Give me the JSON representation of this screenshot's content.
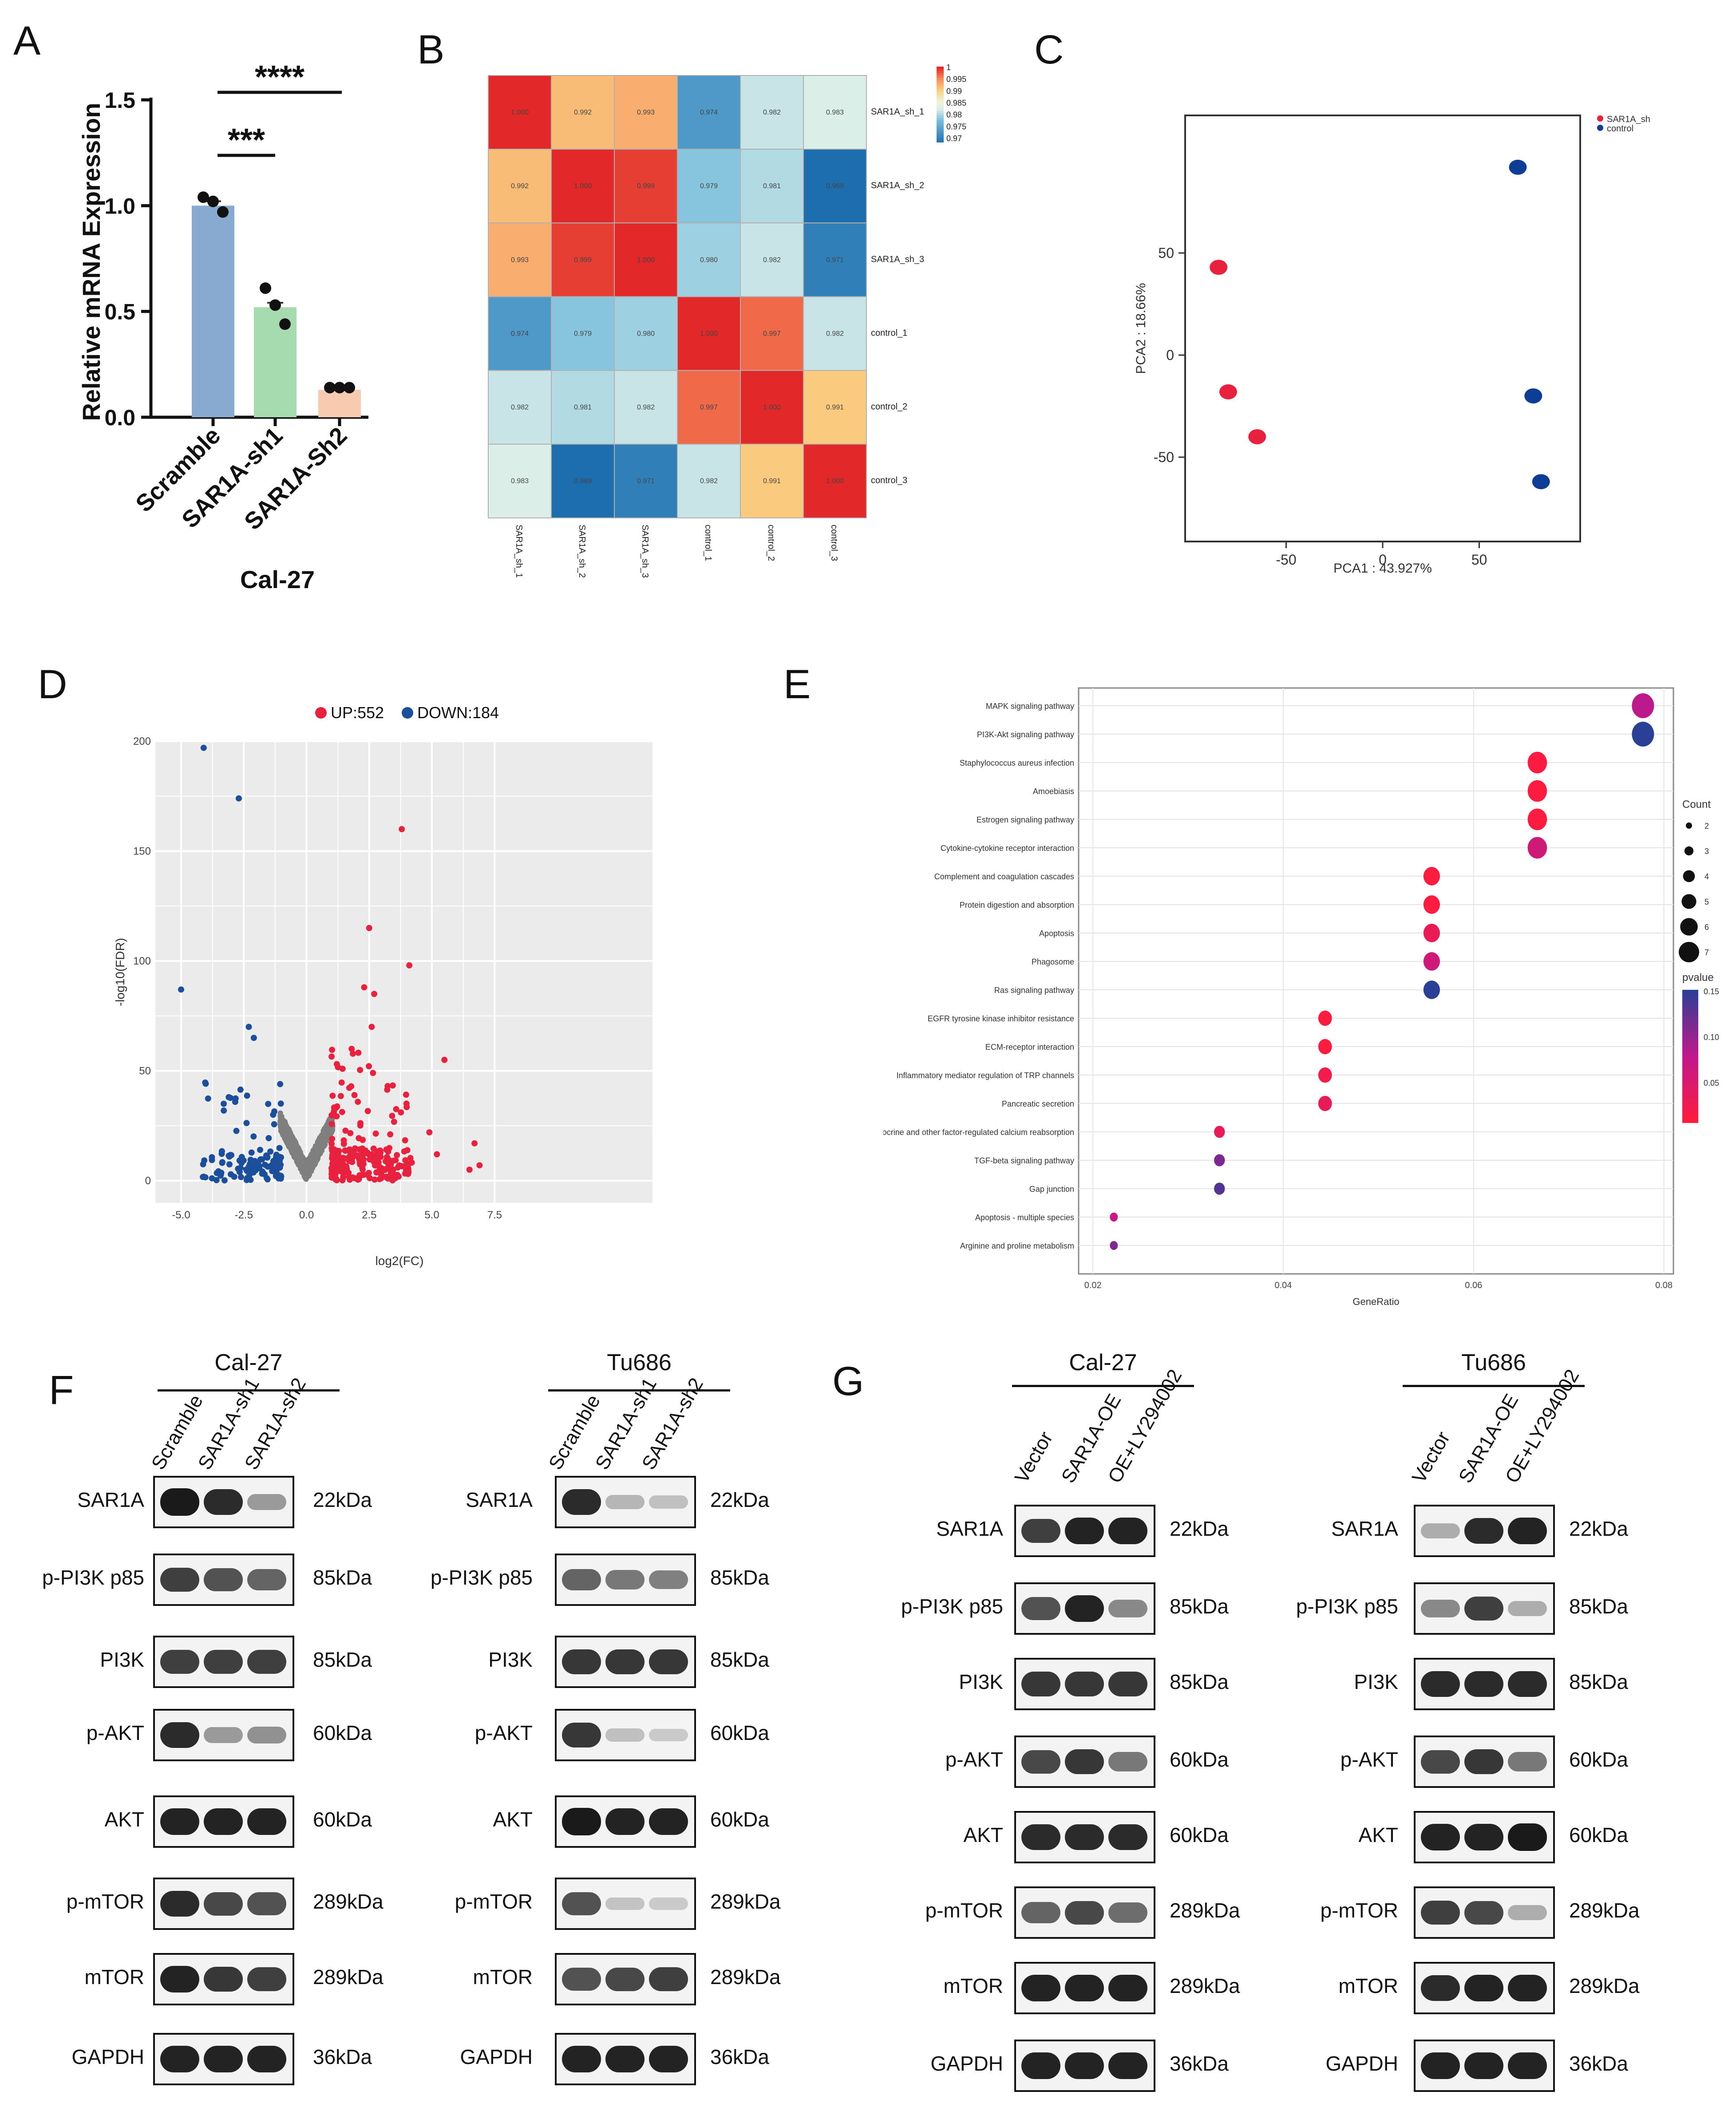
{
  "panel_labels": {
    "A": "A",
    "B": "B",
    "C": "C",
    "D": "D",
    "E": "E",
    "F": "F",
    "G": "G"
  },
  "panelA": {
    "ylabel": "Relative mRNA Expression",
    "xlabel": "Cal-27",
    "categories": [
      "Scramble",
      "SAR1A-sh1",
      "SAR1A-Sh2"
    ],
    "values": [
      1.0,
      0.52,
      0.13
    ],
    "points": [
      [
        1.04,
        1.02,
        0.97
      ],
      [
        0.61,
        0.53,
        0.44
      ],
      [
        0.14,
        0.14,
        0.14
      ]
    ],
    "colors": [
      "#88aad0",
      "#a6dbb0",
      "#f8cbb0"
    ],
    "yticks": [
      "0.0",
      "0.5",
      "1.0",
      "1.5"
    ],
    "ylim": [
      0,
      1.5
    ],
    "sig1": "***",
    "sig2": "****"
  },
  "panelB": {
    "rows": [
      "SAR1A_sh_1",
      "SAR1A_sh_2",
      "SAR1A_sh_3",
      "control_1",
      "control_2",
      "control_3"
    ],
    "matrix": [
      [
        1.0,
        0.992,
        0.993,
        0.974,
        0.982,
        0.983
      ],
      [
        0.992,
        1.0,
        0.999,
        0.979,
        0.981,
        0.969
      ],
      [
        0.993,
        0.999,
        1.0,
        0.98,
        0.982,
        0.971
      ],
      [
        0.974,
        0.979,
        0.98,
        1.0,
        0.997,
        0.982
      ],
      [
        0.982,
        0.981,
        0.982,
        0.997,
        1.0,
        0.991
      ],
      [
        0.983,
        0.969,
        0.971,
        0.982,
        0.991,
        1.0
      ]
    ],
    "cell_labels": [
      [
        "1.000",
        "0.992",
        "0.993",
        "0.974",
        "0.982",
        "0.983"
      ],
      [
        "0.992",
        "1.000",
        "0.999",
        "0.979",
        "0.981",
        "0.969"
      ],
      [
        "0.993",
        "0.999",
        "1.000",
        "0.980",
        "0.982",
        "0.971"
      ],
      [
        "0.974",
        "0.979",
        "0.980",
        "1.000",
        "0.997",
        "0.982"
      ],
      [
        "0.982",
        "0.981",
        "0.982",
        "0.997",
        "1.000",
        "0.991"
      ],
      [
        "0.983",
        "0.969",
        "0.971",
        "0.982",
        "0.991",
        "1.000"
      ]
    ],
    "legend_ticks": [
      "1",
      "0.995",
      "0.99",
      "0.985",
      "0.98",
      "0.975",
      "0.97"
    ]
  },
  "panelC": {
    "xlabel": "PCA1 : 43.927%",
    "ylabel": "PCA2 : 18.66%",
    "xticks": [
      "-50",
      "0",
      "50"
    ],
    "yticks": [
      "50",
      "0",
      "-50"
    ],
    "legend": [
      "SAR1A_sh",
      "control"
    ],
    "colors": [
      "#e8213f",
      "#0d3d95"
    ],
    "sh_points": [
      [
        -85,
        43
      ],
      [
        -80,
        -18
      ],
      [
        -65,
        -40
      ]
    ],
    "control_points": [
      [
        70,
        92
      ],
      [
        78,
        -20
      ],
      [
        82,
        -62
      ]
    ]
  },
  "panelD": {
    "legend_up": "UP:552",
    "legend_down": "DOWN:184",
    "xlabel": "log2(FC)",
    "ylabel": "-log10(FDR)",
    "xticks": [
      "-5.0",
      "-2.5",
      "0.0",
      "2.5",
      "5.0",
      "7.5"
    ],
    "yticks": [
      "0",
      "50",
      "100",
      "150",
      "200"
    ]
  },
  "panelE": {
    "xlabel": "GeneRatio",
    "xticks": [
      "0.02",
      "0.04",
      "0.06",
      "0.08"
    ],
    "pathways": [
      {
        "name": "MAPK signaling pathway",
        "ratio": 0.0778,
        "count": 7,
        "p": 0.08
      },
      {
        "name": "PI3K-Akt signaling pathway",
        "ratio": 0.0778,
        "count": 7,
        "p": 0.15
      },
      {
        "name": "Staphylococcus aureus infection",
        "ratio": 0.0667,
        "count": 6,
        "p": 0.01
      },
      {
        "name": "Amoebiasis",
        "ratio": 0.0667,
        "count": 6,
        "p": 0.01
      },
      {
        "name": "Estrogen signaling pathway",
        "ratio": 0.0667,
        "count": 6,
        "p": 0.01
      },
      {
        "name": "Cytokine-cytokine receptor interaction",
        "ratio": 0.0667,
        "count": 6,
        "p": 0.06
      },
      {
        "name": "Complement and coagulation cascades",
        "ratio": 0.0556,
        "count": 5,
        "p": 0.01
      },
      {
        "name": "Protein digestion and absorption",
        "ratio": 0.0556,
        "count": 5,
        "p": 0.01
      },
      {
        "name": "Apoptosis",
        "ratio": 0.0556,
        "count": 5,
        "p": 0.03
      },
      {
        "name": "Phagosome",
        "ratio": 0.0556,
        "count": 5,
        "p": 0.06
      },
      {
        "name": "Ras signaling pathway",
        "ratio": 0.0556,
        "count": 5,
        "p": 0.15
      },
      {
        "name": "EGFR tyrosine kinase inhibitor resistance",
        "ratio": 0.0444,
        "count": 4,
        "p": 0.01
      },
      {
        "name": "ECM-receptor interaction",
        "ratio": 0.0444,
        "count": 4,
        "p": 0.01
      },
      {
        "name": "Inflammatory mediator regulation of TRP channels",
        "ratio": 0.0444,
        "count": 4,
        "p": 0.02
      },
      {
        "name": "Pancreatic secretion",
        "ratio": 0.0444,
        "count": 4,
        "p": 0.03
      },
      {
        "name": "Endocrine and other factor-regulated calcium reabsorption",
        "ratio": 0.0333,
        "count": 3,
        "p": 0.03
      },
      {
        "name": "TGF-beta signaling pathway",
        "ratio": 0.0333,
        "count": 3,
        "p": 0.11
      },
      {
        "name": "Gap junction",
        "ratio": 0.0333,
        "count": 3,
        "p": 0.13
      },
      {
        "name": "Apoptosis - multiple species",
        "ratio": 0.0222,
        "count": 2,
        "p": 0.07
      },
      {
        "name": "Arginine and proline metabolism",
        "ratio": 0.0222,
        "count": 2,
        "p": 0.11
      }
    ],
    "count_title": "Count",
    "count_ticks": [
      "2",
      "3",
      "4",
      "5",
      "6",
      "7"
    ],
    "pvalue_title": "pvalue",
    "pvalue_ticks": [
      "0.15",
      "0.10",
      "0.05"
    ]
  },
  "panelF": {
    "groups": [
      {
        "title": "Cal-27",
        "lanes": [
          "Scramble",
          "SAR1A-sh1",
          "SAR1A-sh2"
        ]
      },
      {
        "title": "Tu686",
        "lanes": [
          "Scramble",
          "SAR1A-sh1",
          "SAR1A-sh2"
        ]
      }
    ]
  },
  "panelG": {
    "groups": [
      {
        "title": "Cal-27",
        "lanes": [
          "Vector",
          "SAR1A-OE",
          "OE+LY294002"
        ]
      },
      {
        "title": "Tu686",
        "lanes": [
          "Vector",
          "SAR1A-OE",
          "OE+LY294002"
        ]
      }
    ]
  },
  "blot_rows": [
    {
      "protein": "SAR1A",
      "size": "22kDa"
    },
    {
      "protein": "p-PI3K p85",
      "size": "85kDa"
    },
    {
      "protein": "PI3K",
      "size": "85kDa"
    },
    {
      "protein": "p-AKT",
      "size": "60kDa"
    },
    {
      "protein": "AKT",
      "size": "60kDa"
    },
    {
      "protein": "p-mTOR",
      "size": "289kDa"
    },
    {
      "protein": "mTOR",
      "size": "289kDa"
    },
    {
      "protein": "GAPDH",
      "size": "36kDa"
    }
  ],
  "band_intensity": {
    "F_cal27": [
      [
        1,
        0.9,
        0.3
      ],
      [
        0.8,
        0.7,
        0.6
      ],
      [
        0.8,
        0.8,
        0.8
      ],
      [
        0.9,
        0.3,
        0.35
      ],
      [
        0.95,
        0.95,
        0.95
      ],
      [
        0.9,
        0.75,
        0.7
      ],
      [
        0.95,
        0.85,
        0.8
      ],
      [
        0.95,
        0.95,
        0.95
      ]
    ],
    "F_tu686": [
      [
        0.9,
        0.15,
        0.1
      ],
      [
        0.6,
        0.5,
        0.45
      ],
      [
        0.85,
        0.85,
        0.85
      ],
      [
        0.85,
        0.1,
        0.05
      ],
      [
        1,
        0.95,
        0.95
      ],
      [
        0.7,
        0.08,
        0.05
      ],
      [
        0.7,
        0.75,
        0.8
      ],
      [
        0.95,
        0.95,
        0.95
      ]
    ],
    "G_cal27": [
      [
        0.8,
        0.95,
        0.95
      ],
      [
        0.7,
        0.95,
        0.4
      ],
      [
        0.85,
        0.85,
        0.85
      ],
      [
        0.75,
        0.85,
        0.5
      ],
      [
        0.9,
        0.9,
        0.9
      ],
      [
        0.6,
        0.75,
        0.55
      ],
      [
        0.95,
        0.95,
        0.95
      ],
      [
        0.95,
        0.95,
        0.95
      ]
    ],
    "G_tu686": [
      [
        0.2,
        0.9,
        0.95
      ],
      [
        0.4,
        0.8,
        0.2
      ],
      [
        0.9,
        0.9,
        0.9
      ],
      [
        0.75,
        0.85,
        0.5
      ],
      [
        0.95,
        0.95,
        1
      ],
      [
        0.8,
        0.75,
        0.2
      ],
      [
        0.9,
        0.95,
        0.95
      ],
      [
        0.95,
        0.95,
        0.95
      ]
    ]
  }
}
